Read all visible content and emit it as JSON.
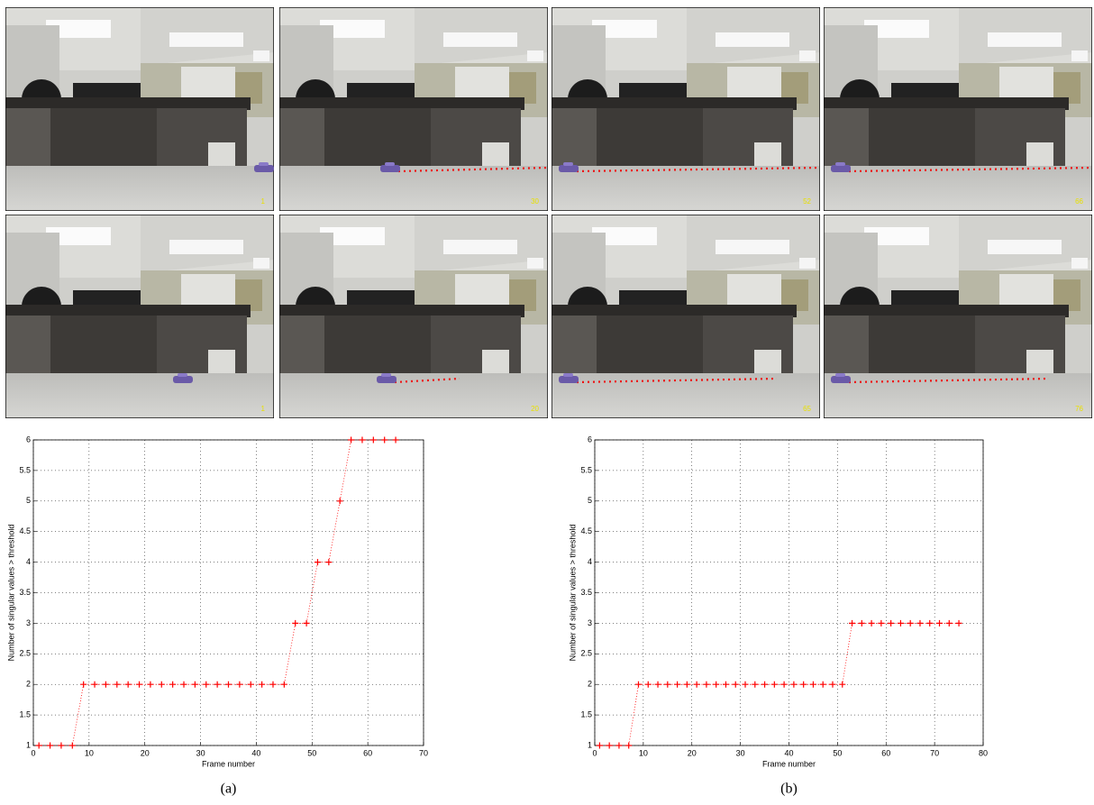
{
  "photo_labels": [
    1,
    30,
    52,
    66,
    1,
    20,
    65,
    76
  ],
  "captions": [
    "(a)",
    "(b)"
  ],
  "chart_data": [
    {
      "type": "line",
      "xlabel": "Frame number",
      "ylabel": "Number of singular values > threshold",
      "x": [
        1,
        3,
        5,
        7,
        9,
        11,
        13,
        15,
        17,
        19,
        21,
        23,
        25,
        27,
        29,
        31,
        33,
        35,
        37,
        39,
        41,
        43,
        45,
        47,
        49,
        51,
        53,
        55,
        57,
        59,
        61,
        63,
        65
      ],
      "values": [
        1,
        1,
        1,
        1,
        2,
        2,
        2,
        2,
        2,
        2,
        2,
        2,
        2,
        2,
        2,
        2,
        2,
        2,
        2,
        2,
        2,
        2,
        2,
        3,
        3,
        4,
        4,
        5,
        6,
        6,
        6,
        6,
        6
      ],
      "color": "#ff0000",
      "grid": true,
      "xlim": [
        0,
        70
      ],
      "xticks": [
        0,
        10,
        20,
        30,
        40,
        50,
        60,
        70
      ],
      "ylim": [
        1,
        6
      ],
      "yticks": [
        1,
        1.5,
        2,
        2.5,
        3,
        3.5,
        4,
        4.5,
        5,
        5.5,
        6
      ]
    },
    {
      "type": "line",
      "xlabel": "Frame number",
      "ylabel": "Number of singular values > threshold",
      "x": [
        1,
        3,
        5,
        7,
        9,
        11,
        13,
        15,
        17,
        19,
        21,
        23,
        25,
        27,
        29,
        31,
        33,
        35,
        37,
        39,
        41,
        43,
        45,
        47,
        49,
        51,
        53,
        55,
        57,
        59,
        61,
        63,
        65,
        67,
        69,
        71,
        73,
        75
      ],
      "values": [
        1,
        1,
        1,
        1,
        2,
        2,
        2,
        2,
        2,
        2,
        2,
        2,
        2,
        2,
        2,
        2,
        2,
        2,
        2,
        2,
        2,
        2,
        2,
        2,
        2,
        2,
        3,
        3,
        3,
        3,
        3,
        3,
        3,
        3,
        3,
        3,
        3,
        3
      ],
      "color": "#ff0000",
      "grid": true,
      "xlim": [
        0,
        80
      ],
      "xticks": [
        0,
        10,
        20,
        30,
        40,
        50,
        60,
        70,
        80
      ],
      "ylim": [
        1,
        6
      ],
      "yticks": [
        1,
        1.5,
        2,
        2.5,
        3,
        3.5,
        4,
        4.5,
        5,
        5.5,
        6
      ]
    }
  ]
}
